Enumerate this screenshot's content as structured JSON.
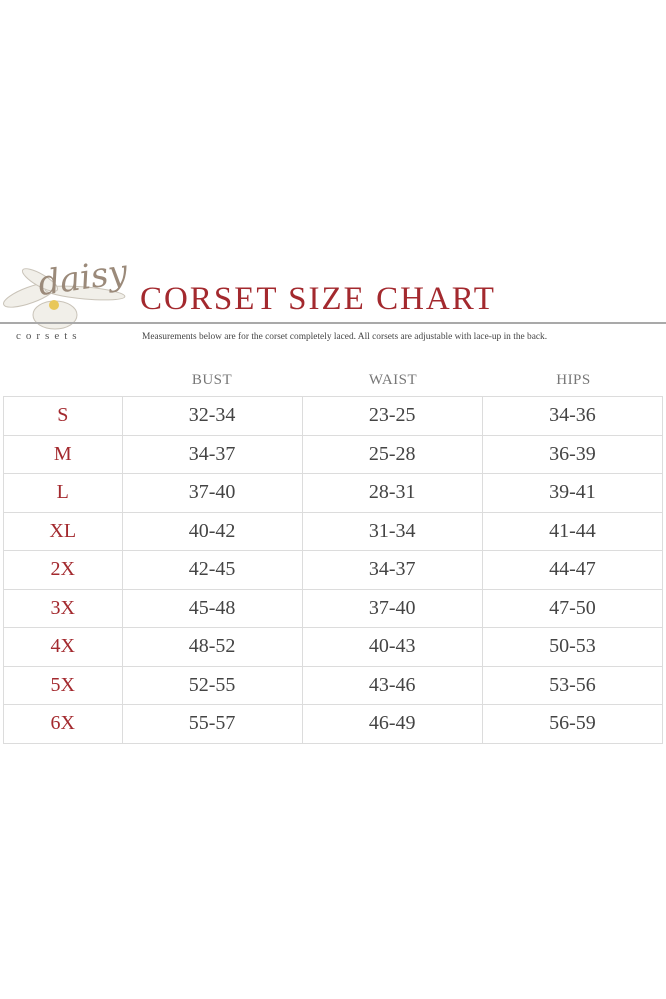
{
  "brand": {
    "logo_word": "daisy",
    "logo_sub": "corsets"
  },
  "title": "CORSET SIZE CHART",
  "subtitle": "Measurements below are for the corset completely laced.  All corsets are adjustable with lace-up in the back.",
  "colors": {
    "accent": "#a3292e",
    "text": "#444444",
    "grid": "#dcdcdc"
  },
  "columns": [
    "BUST",
    "WAIST",
    "HIPS"
  ],
  "rows": [
    {
      "size": "S",
      "bust": "32-34",
      "waist": "23-25",
      "hips": "34-36"
    },
    {
      "size": "M",
      "bust": "34-37",
      "waist": "25-28",
      "hips": "36-39"
    },
    {
      "size": "L",
      "bust": "37-40",
      "waist": "28-31",
      "hips": "39-41"
    },
    {
      "size": "XL",
      "bust": "40-42",
      "waist": "31-34",
      "hips": "41-44"
    },
    {
      "size": "2X",
      "bust": "42-45",
      "waist": "34-37",
      "hips": "44-47"
    },
    {
      "size": "3X",
      "bust": "45-48",
      "waist": "37-40",
      "hips": "47-50"
    },
    {
      "size": "4X",
      "bust": "48-52",
      "waist": "40-43",
      "hips": "50-53"
    },
    {
      "size": "5X",
      "bust": "52-55",
      "waist": "43-46",
      "hips": "53-56"
    },
    {
      "size": "6X",
      "bust": "55-57",
      "waist": "46-49",
      "hips": "56-59"
    }
  ]
}
